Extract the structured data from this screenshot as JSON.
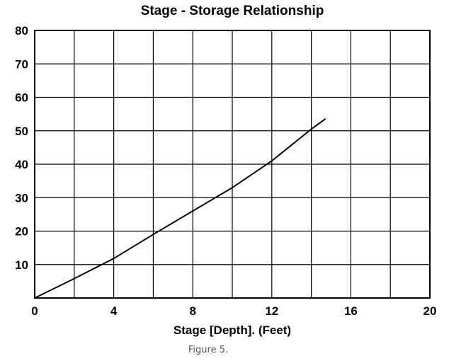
{
  "caption": "Figure 5.",
  "chart_data": {
    "type": "line",
    "title": "Stage - Storage Relationship",
    "xlabel": "Stage [Depth]. (Feet)",
    "ylabel": "",
    "xlim": [
      0,
      20
    ],
    "ylim": [
      0,
      80
    ],
    "x_ticks": [
      0,
      4,
      8,
      12,
      16,
      20
    ],
    "y_ticks": [
      10,
      20,
      30,
      40,
      50,
      60,
      70,
      80
    ],
    "x_tick_labels": [
      "0",
      "4",
      "8",
      "12",
      "16",
      "20"
    ],
    "y_tick_labels": [
      "10",
      "20",
      "30",
      "40",
      "50",
      "60",
      "70",
      "80"
    ],
    "grid": true,
    "series": [
      {
        "x": [
          0,
          2,
          4,
          6,
          8,
          10,
          12,
          14,
          14.7
        ],
        "y": [
          0,
          5.8,
          11.8,
          19,
          26,
          33,
          41,
          50.5,
          53.5
        ]
      }
    ],
    "colors": {
      "line": "#000000",
      "grid": "#000000",
      "background": "#ffffff"
    }
  }
}
